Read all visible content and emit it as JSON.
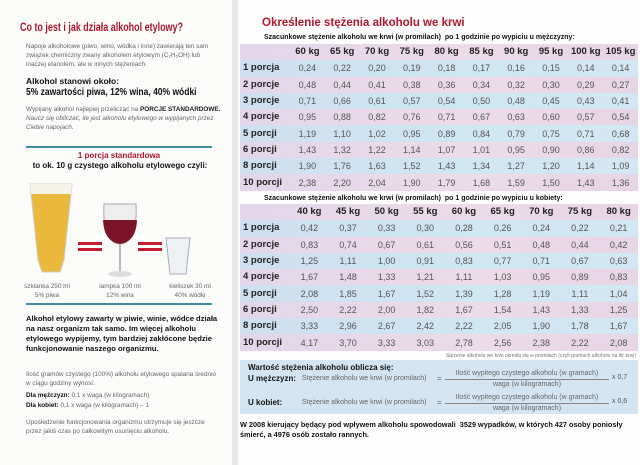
{
  "left": {
    "title": "Co to jest i jak działa alkohol etylowy?",
    "intro": "Napoje alkoholowe (piwo, wino, wódka i inne) zawierają ten sam związek chemiczny zwany alkoholem etylowym (C₂H₅OH) lub inaczej etanolem, ale w innych stężeniach.",
    "content_label": "Alkohol stanowi około:",
    "content_values": "5% zawartości piwa, 12% wina, 40% wódki",
    "standard_text": "Wypijany alkohol najlepiej przeliczać na",
    "standard_bold": "PORCJE STANDARDOWE.",
    "standard_italic": "Naucz się obliczać, ile jest alkoholu etylowego w wypijanych przez Ciebie napojach.",
    "portion_title": "1 porcja standardowa",
    "portion_subtitle": "to ok. 10 g czystego alkoholu etylowego czyli:",
    "drinks": [
      {
        "line1": "szklanka 250 ml",
        "line2": "5% piwa",
        "color": "#e9b838"
      },
      {
        "line1": "lampka 100 ml",
        "line2": "12% wina",
        "color": "#7a1428"
      },
      {
        "line1": "kieliszek 30 ml",
        "line2": "40% wódki",
        "color": "#e4e8ec"
      }
    ],
    "effect_text": "Alkohol etylowy zawarty w piwie, winie, wódce działa na nasz organizm tak samo. Im więcej alkoholu etylowego wypijemy, tym bardziej zakłócone będzie funkcjonowanie naszego organizmu.",
    "burn_text": "Ilość gramów czystego (100%) alkoholu etylowego spalana średnio w ciągu godziny wynosi:",
    "men_label": "Dla mężczyzn:",
    "men_formula": "0,1 x waga (w kilogramach)",
    "women_label": "Dla kobiet:",
    "women_formula": "0,1 x waga (w kilogramach) – 1",
    "footer": "Upośledzenie funkcjonowania organizmu utrzymuje się jeszcze przez jakiś czas po całkowitym usunięciu alkoholu."
  },
  "right": {
    "title": "Określenie stężenia alkoholu we krwi",
    "men_table": {
      "caption": "Szacunkowe stężenie alkoholu we krwi (w promilach)  po 1 godzinie po wypiciu u mężczyzny:",
      "columns": [
        "60 kg",
        "65 kg",
        "70 kg",
        "75 kg",
        "80 kg",
        "85 kg",
        "90 kg",
        "95 kg",
        "100 kg",
        "105 kg"
      ],
      "rows": [
        {
          "label": "1 porcja",
          "values": [
            "0,24",
            "0,22",
            "0,20",
            "0,19",
            "0,18",
            "0,17",
            "0,16",
            "0,15",
            "0,14",
            "0,14"
          ]
        },
        {
          "label": "2 porcje",
          "values": [
            "0,48",
            "0,44",
            "0,41",
            "0,38",
            "0,36",
            "0,34",
            "0,32",
            "0,30",
            "0,29",
            "0,27"
          ]
        },
        {
          "label": "3 porcje",
          "values": [
            "0,71",
            "0,66",
            "0,61",
            "0,57",
            "0,54",
            "0,50",
            "0,48",
            "0,45",
            "0,43",
            "0,41"
          ]
        },
        {
          "label": "4 porcje",
          "values": [
            "0,95",
            "0,88",
            "0,82",
            "0,76",
            "0,71",
            "0,67",
            "0,63",
            "0,60",
            "0,57",
            "0,54"
          ]
        },
        {
          "label": "5 porcji",
          "values": [
            "1,19",
            "1,10",
            "1,02",
            "0,95",
            "0,89",
            "0,84",
            "0,79",
            "0,75",
            "0,71",
            "0,68"
          ]
        },
        {
          "label": "6 porcji",
          "values": [
            "1,43",
            "1,32",
            "1,22",
            "1,14",
            "1,07",
            "1,01",
            "0,95",
            "0,90",
            "0,86",
            "0,82"
          ]
        },
        {
          "label": "8 porcji",
          "values": [
            "1,90",
            "1,76",
            "1,63",
            "1,52",
            "1,43",
            "1,34",
            "1,27",
            "1,20",
            "1,14",
            "1,09"
          ]
        },
        {
          "label": "10 porcji",
          "values": [
            "2,38",
            "2,20",
            "2,04",
            "1,90",
            "1,79",
            "1,68",
            "1,59",
            "1,50",
            "1,43",
            "1,36"
          ]
        }
      ]
    },
    "women_table": {
      "caption": "Szacunkowe stężenie alkoholu we krwi (w promilach)  po 1 godzinie po wypiciu u kobiety:",
      "columns": [
        "40 kg",
        "45 kg",
        "50 kg",
        "55 kg",
        "60 kg",
        "65 kg",
        "70 kg",
        "75 kg",
        "80 kg"
      ],
      "rows": [
        {
          "label": "1 porcja",
          "values": [
            "0,42",
            "0,37",
            "0,33",
            "0,30",
            "0,28",
            "0,26",
            "0,24",
            "0,22",
            "0,21"
          ]
        },
        {
          "label": "2 porcje",
          "values": [
            "0,83",
            "0,74",
            "0,67",
            "0,61",
            "0,56",
            "0,51",
            "0,48",
            "0,44",
            "0,42"
          ]
        },
        {
          "label": "3 porcje",
          "values": [
            "1,25",
            "1,11",
            "1,00",
            "0,91",
            "0,83",
            "0,77",
            "0,71",
            "0,67",
            "0,63"
          ]
        },
        {
          "label": "4 porcje",
          "values": [
            "1,67",
            "1,48",
            "1,33",
            "1,21",
            "1,11",
            "1,03",
            "0,95",
            "0,89",
            "0,83"
          ]
        },
        {
          "label": "5 porcji",
          "values": [
            "2,08",
            "1,85",
            "1,67",
            "1,52",
            "1,39",
            "1,28",
            "1,19",
            "1,11",
            "1,04"
          ]
        },
        {
          "label": "6 porcji",
          "values": [
            "2,50",
            "2,22",
            "2,00",
            "1,82",
            "1,67",
            "1,54",
            "1,43",
            "1,33",
            "1,25"
          ]
        },
        {
          "label": "8 porcji",
          "values": [
            "3,33",
            "2,96",
            "2,67",
            "2,42",
            "2,22",
            "2,05",
            "1,90",
            "1,78",
            "1,67"
          ]
        },
        {
          "label": "10 porcji",
          "values": [
            "4,17",
            "3,70",
            "3,33",
            "3,03",
            "2,78",
            "2,56",
            "2,38",
            "2,22",
            "2,08"
          ]
        }
      ]
    },
    "note": "Stężenie alkoholu we krwi określa się w promilach (czyli gramach alkoholu na litr krwi)",
    "formula": {
      "title": "Wartość stężenia alkoholu oblicza się:",
      "men_label": "U mężczyzn:",
      "women_label": "U kobiet:",
      "lhs": "Stężenie alkoholu we krwi (w promilach)",
      "eq": "=",
      "numerator": "Ilość wypitego czystego alkoholu (w gramach)",
      "denominator": "waga (w kilogramach)",
      "men_factor": "x 0,7",
      "women_factor": "x 0,6"
    },
    "footer": "W 2008 kierujący będący pod wpływem alkoholu spowodowali  3529 wypadków, w których 427 osoby poniosły śmierć, a 4976 osób zostało rannych."
  }
}
